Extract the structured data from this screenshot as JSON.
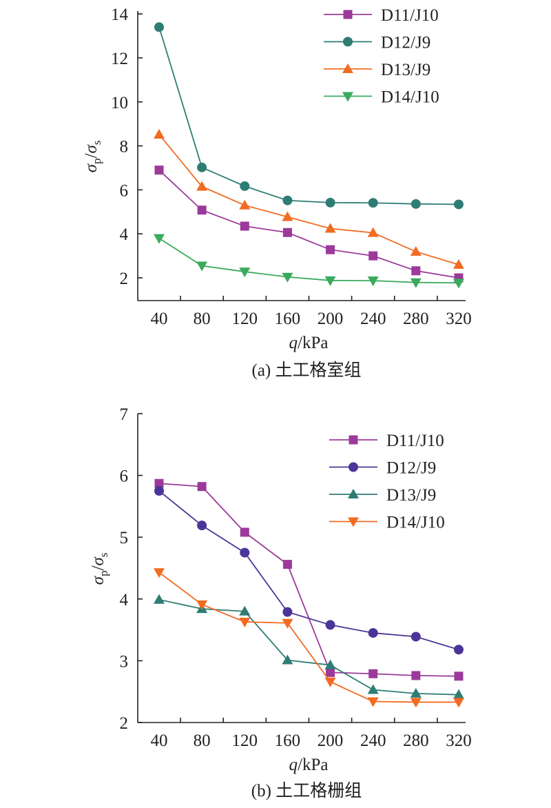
{
  "chart_data": [
    {
      "type": "line",
      "caption": "(a) 土工格室组",
      "xlabel": "q/kPa",
      "ylabel": "σp/σs",
      "x": [
        40,
        80,
        120,
        160,
        200,
        240,
        280,
        320
      ],
      "ylim": [
        1.2,
        14
      ],
      "yticks": [
        2,
        4,
        6,
        8,
        10,
        12,
        14
      ],
      "grid": false,
      "legend_position": "top-right",
      "series": [
        {
          "name": "D11/J10",
          "marker": "square",
          "color": "#9b3a9a",
          "values": [
            6.9,
            5.08,
            4.35,
            4.06,
            3.28,
            3.0,
            2.32,
            2.0
          ]
        },
        {
          "name": "D12/J9",
          "marker": "circle",
          "color": "#2e7d74",
          "values": [
            13.4,
            7.02,
            6.17,
            5.52,
            5.42,
            5.41,
            5.36,
            5.34
          ]
        },
        {
          "name": "D13/J9",
          "marker": "triangle-up",
          "color": "#f26b22",
          "values": [
            8.52,
            6.15,
            5.3,
            4.77,
            4.24,
            4.05,
            3.19,
            2.6
          ]
        },
        {
          "name": "D14/J10",
          "marker": "triangle-down",
          "color": "#3aaa5c",
          "values": [
            3.8,
            2.55,
            2.28,
            2.04,
            1.88,
            1.87,
            1.79,
            1.77
          ]
        }
      ]
    },
    {
      "type": "line",
      "caption": "(b) 土工格栅组",
      "xlabel": "q/kPa",
      "ylabel": "σp/σs",
      "x": [
        40,
        80,
        120,
        160,
        200,
        240,
        280,
        320
      ],
      "ylim": [
        2,
        7
      ],
      "yticks": [
        2,
        3,
        4,
        5,
        6,
        7
      ],
      "grid": false,
      "legend_position": "top-right",
      "series": [
        {
          "name": "D11/J10",
          "marker": "square",
          "color": "#9b3a9a",
          "values": [
            5.87,
            5.82,
            5.08,
            4.56,
            2.81,
            2.79,
            2.76,
            2.75
          ]
        },
        {
          "name": "D12/J9",
          "marker": "circle",
          "color": "#4b3598",
          "values": [
            5.75,
            5.19,
            4.75,
            3.79,
            3.58,
            3.45,
            3.39,
            3.18
          ]
        },
        {
          "name": "D13/J9",
          "marker": "triangle-up",
          "color": "#2e7d74",
          "values": [
            3.99,
            3.84,
            3.8,
            3.01,
            2.93,
            2.53,
            2.47,
            2.45
          ]
        },
        {
          "name": "D14/J10",
          "marker": "triangle-down",
          "color": "#f26b22",
          "values": [
            4.43,
            3.91,
            3.63,
            3.61,
            2.66,
            2.34,
            2.33,
            2.33
          ]
        }
      ]
    }
  ]
}
